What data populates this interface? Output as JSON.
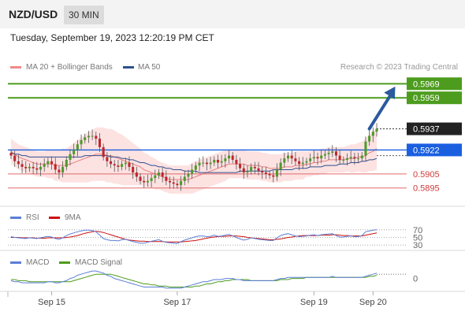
{
  "header": {
    "pair": "NZD/USD",
    "timeframe": "30 MIN"
  },
  "timestamp": "Tuesday, September 19, 2023 12:20:19 PM CET",
  "copyright": "Research © 2023 Trading Central",
  "colors": {
    "resistance": "#4d9c1e",
    "support_blue": "#1a5fe0",
    "support_red": "#e06a6a",
    "current": "#222222",
    "arrow": "#2c5a9e",
    "bull": "#4c9a2a",
    "bear": "#c0262d",
    "ma20": "#e88080",
    "ma50": "#2f4f8f",
    "band": "#fcd8d8",
    "rsi": "#5b7ed6",
    "rsi_ma": "#cc1111",
    "macd": "#5b7ed6",
    "macd_signal": "#4d9c1e"
  },
  "chart_data": [
    {
      "type": "candlestick",
      "title": "",
      "legend": [
        {
          "name": "MA 20 + Bollinger Bands",
          "color": "#f08a8a"
        },
        {
          "name": "MA 50",
          "color": "#2f4f8f"
        }
      ],
      "ylim": [
        0.5882,
        0.5977
      ],
      "x_labels": [
        {
          "label": "Sep 15",
          "index": 11
        },
        {
          "label": "Sep 17",
          "index": 45
        },
        {
          "label": "Sep 19",
          "index": 82
        },
        {
          "label": "Sep 20",
          "index": 98
        }
      ],
      "levels": [
        {
          "value": 0.5969,
          "label": "0.5969",
          "kind": "resistance"
        },
        {
          "value": 0.5959,
          "label": "0.5959",
          "kind": "resistance"
        },
        {
          "value": 0.5937,
          "label": "0.5937",
          "kind": "current"
        },
        {
          "value": 0.5922,
          "label": "0.5922",
          "kind": "pivot"
        },
        {
          "value": 0.5905,
          "label": "0.5905",
          "kind": "support"
        },
        {
          "value": 0.5895,
          "label": "0.5895",
          "kind": "support"
        }
      ],
      "projection_arrow": {
        "from": [
          97,
          0.5937
        ],
        "to": [
          104,
          0.5967
        ]
      },
      "closes": [
        0.5918,
        0.5914,
        0.5912,
        0.591,
        0.5909,
        0.591,
        0.5909,
        0.5908,
        0.591,
        0.5912,
        0.5914,
        0.5912,
        0.5908,
        0.5906,
        0.591,
        0.5915,
        0.5919,
        0.5922,
        0.5926,
        0.5929,
        0.5931,
        0.5932,
        0.5932,
        0.593,
        0.5924,
        0.5917,
        0.5914,
        0.5912,
        0.5911,
        0.591,
        0.5912,
        0.5913,
        0.591,
        0.5906,
        0.5903,
        0.59,
        0.5899,
        0.59,
        0.5902,
        0.5904,
        0.5906,
        0.5903,
        0.59,
        0.5899,
        0.5898,
        0.5897,
        0.59,
        0.5903,
        0.5905,
        0.5908,
        0.5911,
        0.5913,
        0.5913,
        0.5912,
        0.5913,
        0.5915,
        0.5913,
        0.5914,
        0.5916,
        0.5918,
        0.5915,
        0.5912,
        0.5909,
        0.5906,
        0.5907,
        0.591,
        0.5909,
        0.5907,
        0.5906,
        0.5905,
        0.5904,
        0.5903,
        0.5908,
        0.5913,
        0.5916,
        0.5918,
        0.5916,
        0.5914,
        0.5912,
        0.5913,
        0.5914,
        0.5916,
        0.5917,
        0.5916,
        0.5918,
        0.5919,
        0.592,
        0.5921,
        0.5918,
        0.5915,
        0.5915,
        0.5916,
        0.5917,
        0.5916,
        0.5916,
        0.5918,
        0.5928,
        0.5932,
        0.5935,
        0.5937
      ],
      "ma20": [
        0.5921,
        0.5919,
        0.5917,
        0.5916,
        0.5915,
        0.5914,
        0.5913,
        0.5912,
        0.5912,
        0.5912,
        0.5912,
        0.5912,
        0.5911,
        0.5911,
        0.5911,
        0.5911,
        0.5912,
        0.5913,
        0.5914,
        0.5915,
        0.5916,
        0.5917,
        0.5918,
        0.5919,
        0.5919,
        0.5919,
        0.5918,
        0.5918,
        0.5917,
        0.5916,
        0.5915,
        0.5914,
        0.5913,
        0.5912,
        0.5911,
        0.591,
        0.5908,
        0.5907,
        0.5906,
        0.5905,
        0.5904,
        0.5903,
        0.5902,
        0.5901,
        0.5901,
        0.5901,
        0.5901,
        0.5901,
        0.5901,
        0.5902,
        0.5903,
        0.5904,
        0.5905,
        0.5906,
        0.5907,
        0.5908,
        0.5909,
        0.591,
        0.5911,
        0.5912,
        0.5912,
        0.5912,
        0.5912,
        0.5912,
        0.5911,
        0.5911,
        0.5911,
        0.5911,
        0.591,
        0.591,
        0.5909,
        0.5909,
        0.5909,
        0.5909,
        0.591,
        0.591,
        0.591,
        0.5911,
        0.5911,
        0.5911,
        0.5912,
        0.5912,
        0.5913,
        0.5913,
        0.5914,
        0.5914,
        0.5915,
        0.5915,
        0.5915,
        0.5915,
        0.5915,
        0.5916,
        0.5916,
        0.5916,
        0.5917,
        0.5917,
        0.5918,
        0.592,
        0.5921,
        0.5923
      ],
      "ma50": [
        0.592,
        0.5919,
        0.5919,
        0.5918,
        0.5918,
        0.5917,
        0.5917,
        0.5917,
        0.5917,
        0.5917,
        0.5917,
        0.5917,
        0.5917,
        0.5917,
        0.5917,
        0.5917,
        0.5917,
        0.5917,
        0.5917,
        0.5917,
        0.5918,
        0.5918,
        0.5918,
        0.5918,
        0.5918,
        0.5918,
        0.5918,
        0.5917,
        0.5917,
        0.5917,
        0.5916,
        0.5916,
        0.5915,
        0.5915,
        0.5914,
        0.5913,
        0.5913,
        0.5912,
        0.5911,
        0.5911,
        0.591,
        0.591,
        0.5909,
        0.5909,
        0.5908,
        0.5908,
        0.5908,
        0.5907,
        0.5907,
        0.5907,
        0.5907,
        0.5906,
        0.5906,
        0.5906,
        0.5906,
        0.5906,
        0.5906,
        0.5906,
        0.5906,
        0.5906,
        0.5906,
        0.5906,
        0.5907,
        0.5907,
        0.5907,
        0.5907,
        0.5907,
        0.5907,
        0.5907,
        0.5907,
        0.5907,
        0.5908,
        0.5908,
        0.5908,
        0.5908,
        0.5908,
        0.5908,
        0.5909,
        0.5909,
        0.5909,
        0.5909,
        0.591,
        0.591,
        0.591,
        0.591,
        0.5911,
        0.5911,
        0.5911,
        0.5911,
        0.5912,
        0.5912,
        0.5912,
        0.5913,
        0.5913,
        0.5913,
        0.5914,
        0.5914,
        0.5915,
        0.5915,
        0.5916
      ],
      "band_width": [
        0.0009,
        0.0009,
        0.0009,
        0.0009,
        0.0009,
        0.0009,
        0.0009,
        0.0009,
        0.0009,
        0.0009,
        0.001,
        0.001,
        0.0011,
        0.0011,
        0.0012,
        0.0012,
        0.0013,
        0.0014,
        0.0015,
        0.0016,
        0.0017,
        0.0018,
        0.0018,
        0.0019,
        0.0019,
        0.0019,
        0.0019,
        0.0019,
        0.0019,
        0.0018,
        0.0018,
        0.0017,
        0.0016,
        0.0015,
        0.0014,
        0.0013,
        0.0012,
        0.0012,
        0.0011,
        0.0011,
        0.001,
        0.001,
        0.001,
        0.001,
        0.001,
        0.001,
        0.001,
        0.001,
        0.001,
        0.0011,
        0.0011,
        0.0011,
        0.0011,
        0.0011,
        0.0011,
        0.0011,
        0.0011,
        0.0011,
        0.0011,
        0.001,
        0.001,
        0.001,
        0.001,
        0.001,
        0.001,
        0.001,
        0.001,
        0.001,
        0.001,
        0.001,
        0.001,
        0.001,
        0.001,
        0.001,
        0.001,
        0.001,
        0.001,
        0.001,
        0.001,
        0.001,
        0.0009,
        0.0009,
        0.0009,
        0.0009,
        0.0009,
        0.0009,
        0.0009,
        0.0009,
        0.0009,
        0.0009,
        0.0009,
        0.0009,
        0.001,
        0.001,
        0.001,
        0.0011,
        0.0012,
        0.0013,
        0.0014,
        0.0015
      ]
    },
    {
      "type": "line",
      "title": "",
      "legend": [
        {
          "name": "RSI",
          "color": "#5b7ed6"
        },
        {
          "name": "9MA",
          "color": "#cc1111"
        }
      ],
      "ylim": [
        20,
        80
      ],
      "ticks": [
        {
          "value": 70,
          "label": "70"
        },
        {
          "value": 50,
          "label": "50"
        },
        {
          "value": 30,
          "label": "30"
        }
      ],
      "series": [
        {
          "name": "RSI",
          "values": [
            52,
            50,
            49,
            48,
            47,
            49,
            48,
            47,
            49,
            51,
            53,
            51,
            47,
            45,
            49,
            55,
            59,
            62,
            65,
            67,
            69,
            69,
            68,
            65,
            56,
            47,
            44,
            42,
            42,
            41,
            44,
            45,
            42,
            39,
            37,
            35,
            35,
            37,
            40,
            42,
            44,
            40,
            37,
            36,
            35,
            34,
            39,
            43,
            46,
            49,
            52,
            54,
            54,
            52,
            53,
            56,
            53,
            54,
            56,
            58,
            54,
            50,
            46,
            43,
            45,
            49,
            47,
            45,
            44,
            43,
            42,
            42,
            49,
            55,
            58,
            60,
            57,
            54,
            52,
            53,
            54,
            56,
            57,
            55,
            57,
            58,
            59,
            60,
            55,
            51,
            51,
            53,
            54,
            52,
            52,
            55,
            65,
            67,
            69,
            70
          ]
        },
        {
          "name": "9MA",
          "values": [
            50,
            50,
            50,
            49,
            49,
            49,
            49,
            48,
            48,
            48,
            49,
            49,
            49,
            49,
            49,
            50,
            51,
            53,
            55,
            58,
            61,
            63,
            65,
            66,
            65,
            63,
            60,
            57,
            54,
            51,
            48,
            45,
            43,
            42,
            41,
            40,
            40,
            39,
            39,
            39,
            39,
            39,
            38,
            38,
            38,
            38,
            38,
            39,
            40,
            41,
            42,
            44,
            46,
            48,
            50,
            51,
            52,
            53,
            53,
            54,
            54,
            54,
            53,
            52,
            50,
            49,
            48,
            47,
            46,
            45,
            44,
            44,
            45,
            46,
            48,
            50,
            51,
            53,
            54,
            55,
            55,
            55,
            55,
            55,
            56,
            56,
            56,
            57,
            57,
            56,
            55,
            55,
            54,
            54,
            54,
            54,
            56,
            58,
            60,
            62
          ]
        }
      ]
    },
    {
      "type": "line",
      "title": "",
      "legend": [
        {
          "name": "MACD",
          "color": "#5b7ed6"
        },
        {
          "name": "MACD Signal",
          "color": "#4d9c1e"
        }
      ],
      "ylim": [
        -0.0012,
        0.001
      ],
      "ticks": [
        {
          "value": 0,
          "label": "0"
        }
      ],
      "series": [
        {
          "name": "MACD",
          "values": [
            -0.0002,
            -0.0003,
            -0.0003,
            -0.0004,
            -0.0004,
            -0.0004,
            -0.0004,
            -0.0004,
            -0.0004,
            -0.0004,
            -0.0003,
            -0.0003,
            -0.0004,
            -0.0004,
            -0.0003,
            -0.0002,
            0.0,
            0.0001,
            0.0003,
            0.0004,
            0.0005,
            0.0006,
            0.0007,
            0.0007,
            0.0006,
            0.0005,
            0.0003,
            0.0002,
            0.0,
            -0.0001,
            -0.0002,
            -0.0003,
            -0.0004,
            -0.0005,
            -0.0006,
            -0.0007,
            -0.0008,
            -0.0008,
            -0.0008,
            -0.0008,
            -0.0008,
            -0.0008,
            -0.0009,
            -0.0009,
            -0.0009,
            -0.0009,
            -0.0009,
            -0.0008,
            -0.0007,
            -0.0006,
            -0.0005,
            -0.0004,
            -0.0003,
            -0.0003,
            -0.0002,
            -0.0001,
            -0.0001,
            -0.0001,
            0.0,
            0.0,
            0.0,
            -0.0001,
            -0.0001,
            -0.0002,
            -0.0002,
            -0.0002,
            -0.0002,
            -0.0002,
            -0.0002,
            -0.0002,
            -0.0002,
            -0.0002,
            -0.0001,
            0.0,
            0.0,
            0.0001,
            0.0001,
            0.0001,
            0.0001,
            0.0001,
            0.0001,
            0.0001,
            0.0001,
            0.0001,
            0.0001,
            0.0001,
            0.0001,
            0.0002,
            0.0001,
            0.0001,
            0.0001,
            0.0001,
            0.0001,
            0.0001,
            0.0001,
            0.0001,
            0.0002,
            0.0003,
            0.0004,
            0.0005
          ]
        },
        {
          "name": "MACD Signal",
          "values": [
            -0.0001,
            -0.0001,
            -0.0002,
            -0.0002,
            -0.0002,
            -0.0003,
            -0.0003,
            -0.0003,
            -0.0003,
            -0.0003,
            -0.0003,
            -0.0003,
            -0.0003,
            -0.0003,
            -0.0003,
            -0.0003,
            -0.0003,
            -0.0002,
            -0.0001,
            0.0,
            0.0001,
            0.0002,
            0.0003,
            0.0004,
            0.0004,
            0.0004,
            0.0004,
            0.0004,
            0.0003,
            0.0002,
            0.0001,
            0.0,
            -0.0001,
            -0.0002,
            -0.0003,
            -0.0004,
            -0.0005,
            -0.0005,
            -0.0006,
            -0.0006,
            -0.0007,
            -0.0007,
            -0.0007,
            -0.0008,
            -0.0008,
            -0.0008,
            -0.0008,
            -0.0008,
            -0.0008,
            -0.0008,
            -0.0007,
            -0.0007,
            -0.0006,
            -0.0005,
            -0.0005,
            -0.0004,
            -0.0003,
            -0.0003,
            -0.0002,
            -0.0002,
            -0.0001,
            -0.0001,
            -0.0001,
            -0.0001,
            -0.0001,
            -0.0002,
            -0.0002,
            -0.0002,
            -0.0002,
            -0.0002,
            -0.0002,
            -0.0002,
            -0.0002,
            -0.0001,
            -0.0001,
            -0.0001,
            0.0,
            0.0,
            0.0,
            0.0,
            0.0001,
            0.0001,
            0.0001,
            0.0001,
            0.0001,
            0.0001,
            0.0001,
            0.0001,
            0.0001,
            0.0001,
            0.0001,
            0.0001,
            0.0001,
            0.0001,
            0.0001,
            0.0001,
            0.0001,
            0.0002,
            0.0002,
            0.0003
          ]
        }
      ]
    }
  ]
}
